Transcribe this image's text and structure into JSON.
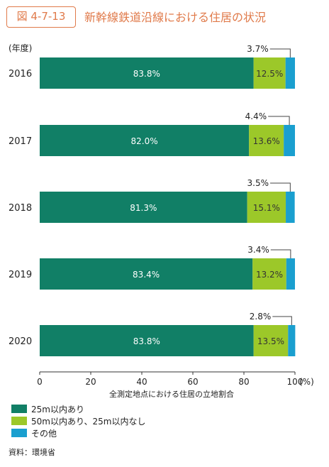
{
  "figure": {
    "number": "図 4-7-13",
    "title": "新幹線鉄道沿線における住居の状況",
    "source": "資料：環境省"
  },
  "chart_data": {
    "type": "bar",
    "orientation": "horizontal",
    "stacked": true,
    "year_header": "(年度)",
    "categories": [
      "2016",
      "2017",
      "2018",
      "2019",
      "2020"
    ],
    "series": [
      {
        "name": "25m以内あり",
        "values": [
          83.8,
          82.0,
          81.3,
          83.4,
          83.8
        ],
        "labels": [
          "83.8%",
          "82.0%",
          "81.3%",
          "83.4%",
          "83.8%"
        ],
        "color": "#117f66",
        "label_color": "#ffffff"
      },
      {
        "name": "50m以内あり、25m以内なし",
        "values": [
          12.5,
          13.6,
          15.1,
          13.2,
          13.5
        ],
        "labels": [
          "12.5%",
          "13.6%",
          "15.1%",
          "13.2%",
          "13.5%"
        ],
        "color": "#9cc829",
        "label_color": "#333333"
      },
      {
        "name": "その他",
        "values": [
          3.7,
          4.4,
          3.5,
          3.4,
          2.8
        ],
        "labels": [
          "3.7%",
          "4.4%",
          "3.5%",
          "3.4%",
          "2.8%"
        ],
        "color": "#1a9fcf"
      }
    ],
    "xlim": [
      0,
      100
    ],
    "xticks": [
      "0",
      "20",
      "40",
      "60",
      "80",
      "100"
    ],
    "xunit": "(%)",
    "xlabel": "全測定地点における住居の立地割合",
    "grid": false,
    "legend_position": "bottom-left"
  }
}
